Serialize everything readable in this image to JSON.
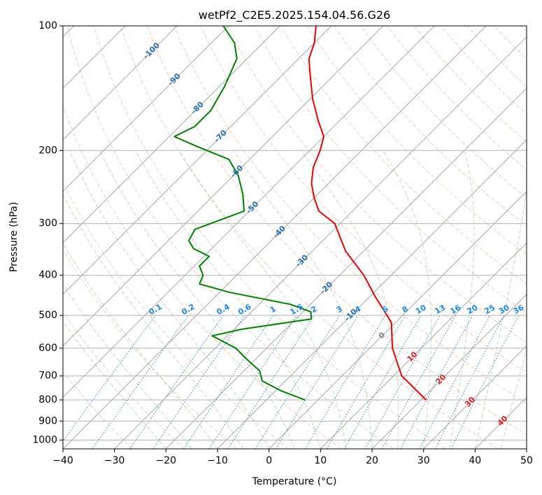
{
  "chart_data": {
    "type": "line",
    "chart_kind": "Skew-T log-P diagram",
    "title": "wetPf2_C2E5.2025.154.04.56.G26",
    "xlabel": "Temperature (°C)",
    "ylabel": "Pressure (hPa)",
    "xlim": [
      -40,
      50
    ],
    "ylim": [
      1050,
      100
    ],
    "x_ticks": [
      -40,
      -30,
      -20,
      -10,
      0,
      10,
      20,
      30,
      40,
      50
    ],
    "x_tick_labels": [
      "−40",
      "−30",
      "−20",
      "−10",
      "0",
      "10",
      "20",
      "30",
      "40",
      "50"
    ],
    "y_ticks": [
      100,
      200,
      300,
      400,
      500,
      600,
      700,
      800,
      900,
      1000
    ],
    "y_tick_labels": [
      "100",
      "200",
      "300",
      "400",
      "500",
      "600",
      "700",
      "800",
      "900",
      "1000"
    ],
    "isotherm_labels": [
      {
        "text": "-100",
        "t": -100
      },
      {
        "text": "-90",
        "t": -90
      },
      {
        "text": "-80",
        "t": -80
      },
      {
        "text": "-70",
        "t": -70
      },
      {
        "text": "-60",
        "t": -60
      },
      {
        "text": "-50",
        "t": -50
      },
      {
        "text": "-40",
        "t": -40
      },
      {
        "text": "-30",
        "t": -30
      },
      {
        "text": "-20",
        "t": -20
      },
      {
        "text": "-10",
        "t": -10
      },
      {
        "text": "0",
        "t": 0
      },
      {
        "text": "10",
        "t": 10
      },
      {
        "text": "20",
        "t": 20
      },
      {
        "text": "30",
        "t": 30
      },
      {
        "text": "40",
        "t": 40
      }
    ],
    "mixing_ratio_labels": [
      {
        "text": "0.1",
        "w": 0.1
      },
      {
        "text": "0.2",
        "w": 0.2
      },
      {
        "text": "0.4",
        "w": 0.4
      },
      {
        "text": "0.6",
        "w": 0.6
      },
      {
        "text": "1",
        "w": 1
      },
      {
        "text": "1.5",
        "w": 1.5
      },
      {
        "text": "2",
        "w": 2
      },
      {
        "text": "3",
        "w": 3
      },
      {
        "text": "4",
        "w": 4
      },
      {
        "text": "6",
        "w": 6
      },
      {
        "text": "8",
        "w": 8
      },
      {
        "text": "10",
        "w": 10
      },
      {
        "text": "13",
        "w": 13
      },
      {
        "text": "16",
        "w": 16
      },
      {
        "text": "20",
        "w": 20
      },
      {
        "text": "25",
        "w": 25
      },
      {
        "text": "30",
        "w": 30
      },
      {
        "text": "36",
        "w": 36
      }
    ],
    "series": [
      {
        "name": "Temperature",
        "color": "#ee0000",
        "points": [
          [
            800,
            21
          ],
          [
            700,
            11.6
          ],
          [
            600,
            4.4
          ],
          [
            520,
            -0.8
          ],
          [
            450,
            -9
          ],
          [
            400,
            -15.3
          ],
          [
            350,
            -23.5
          ],
          [
            300,
            -31
          ],
          [
            280,
            -36.5
          ],
          [
            260,
            -40
          ],
          [
            240,
            -43.3
          ],
          [
            220,
            -46
          ],
          [
            200,
            -48
          ],
          [
            185,
            -50
          ],
          [
            170,
            -54
          ],
          [
            150,
            -59.5
          ],
          [
            130,
            -65
          ],
          [
            120,
            -68
          ],
          [
            110,
            -70
          ],
          [
            100,
            -73
          ]
        ]
      },
      {
        "name": "Dewpoint",
        "color": "#007f00",
        "points": [
          [
            800,
            -2.5
          ],
          [
            760,
            -9
          ],
          [
            720,
            -14.5
          ],
          [
            680,
            -17
          ],
          [
            640,
            -21.5
          ],
          [
            600,
            -26
          ],
          [
            560,
            -33
          ],
          [
            540,
            -28.5
          ],
          [
            510,
            -17
          ],
          [
            490,
            -18.5
          ],
          [
            470,
            -24
          ],
          [
            440,
            -38
          ],
          [
            420,
            -45.5
          ],
          [
            400,
            -46.5
          ],
          [
            380,
            -49
          ],
          [
            360,
            -49
          ],
          [
            345,
            -53.5
          ],
          [
            330,
            -56
          ],
          [
            310,
            -57
          ],
          [
            280,
            -51
          ],
          [
            255,
            -54.5
          ],
          [
            230,
            -59
          ],
          [
            210,
            -64
          ],
          [
            195,
            -73
          ],
          [
            185,
            -79
          ],
          [
            175,
            -77
          ],
          [
            160,
            -77
          ],
          [
            140,
            -79
          ],
          [
            120,
            -82
          ],
          [
            110,
            -85.5
          ],
          [
            100,
            -91
          ]
        ]
      }
    ]
  }
}
